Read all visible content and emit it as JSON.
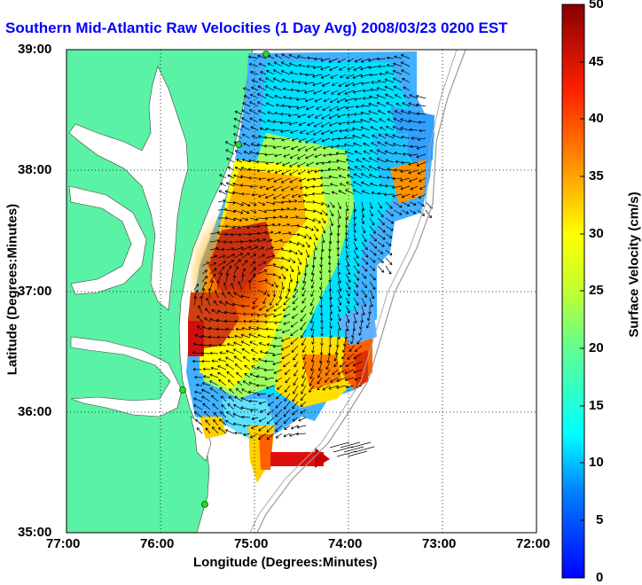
{
  "title": "Southern Mid-Atlantic Raw Velocities (1 Day Avg) 2008/03/23 0200 EST",
  "axes": {
    "xlabel": "Longitude (Degrees:Minutes)",
    "ylabel": "Latitude (Degrees:Minutes)",
    "xticks": [
      "77:00",
      "76:00",
      "75:00",
      "74:00",
      "73:00",
      "72:00"
    ],
    "yticks": [
      "39:00",
      "38:00",
      "37:00",
      "36:00",
      "35:00"
    ]
  },
  "colorbar": {
    "label": "Surface Velocity (cm/s)",
    "ticks": [
      "50",
      "45",
      "40",
      "35",
      "30",
      "25",
      "20",
      "15",
      "10",
      "5",
      "0"
    ],
    "min": 0,
    "max": 50
  },
  "colors": {
    "land": "#5af2a4",
    "title": "#0000ff",
    "arrow": "#000000",
    "station": "#22dd22"
  },
  "grid": "dotted"
}
